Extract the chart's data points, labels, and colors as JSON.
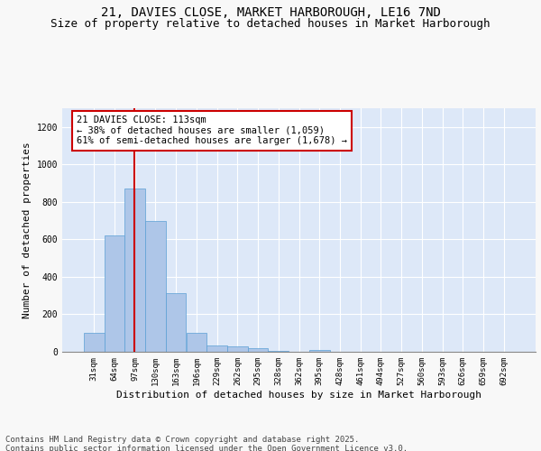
{
  "title_line1": "21, DAVIES CLOSE, MARKET HARBOROUGH, LE16 7ND",
  "title_line2": "Size of property relative to detached houses in Market Harborough",
  "xlabel": "Distribution of detached houses by size in Market Harborough",
  "ylabel": "Number of detached properties",
  "categories": [
    "31sqm",
    "64sqm",
    "97sqm",
    "130sqm",
    "163sqm",
    "196sqm",
    "229sqm",
    "262sqm",
    "295sqm",
    "328sqm",
    "362sqm",
    "395sqm",
    "428sqm",
    "461sqm",
    "494sqm",
    "527sqm",
    "560sqm",
    "593sqm",
    "626sqm",
    "659sqm",
    "692sqm"
  ],
  "values": [
    100,
    620,
    870,
    700,
    315,
    100,
    33,
    28,
    18,
    5,
    0,
    10,
    0,
    0,
    0,
    0,
    0,
    0,
    0,
    0,
    0
  ],
  "bar_color": "#aec6e8",
  "bar_edge_color": "#5a9fd4",
  "ylim": [
    0,
    1300
  ],
  "yticks": [
    0,
    200,
    400,
    600,
    800,
    1000,
    1200
  ],
  "annotation_text": "21 DAVIES CLOSE: 113sqm\n← 38% of detached houses are smaller (1,059)\n61% of semi-detached houses are larger (1,678) →",
  "vline_color": "#cc0000",
  "annotation_box_color": "#cc0000",
  "background_color": "#dde8f8",
  "footer_text": "Contains HM Land Registry data © Crown copyright and database right 2025.\nContains public sector information licensed under the Open Government Licence v3.0.",
  "grid_color": "#ffffff",
  "title_fontsize": 10,
  "subtitle_fontsize": 9,
  "annotation_fontsize": 7.5,
  "axis_label_fontsize": 8,
  "tick_fontsize": 6.5,
  "footer_fontsize": 6.5
}
